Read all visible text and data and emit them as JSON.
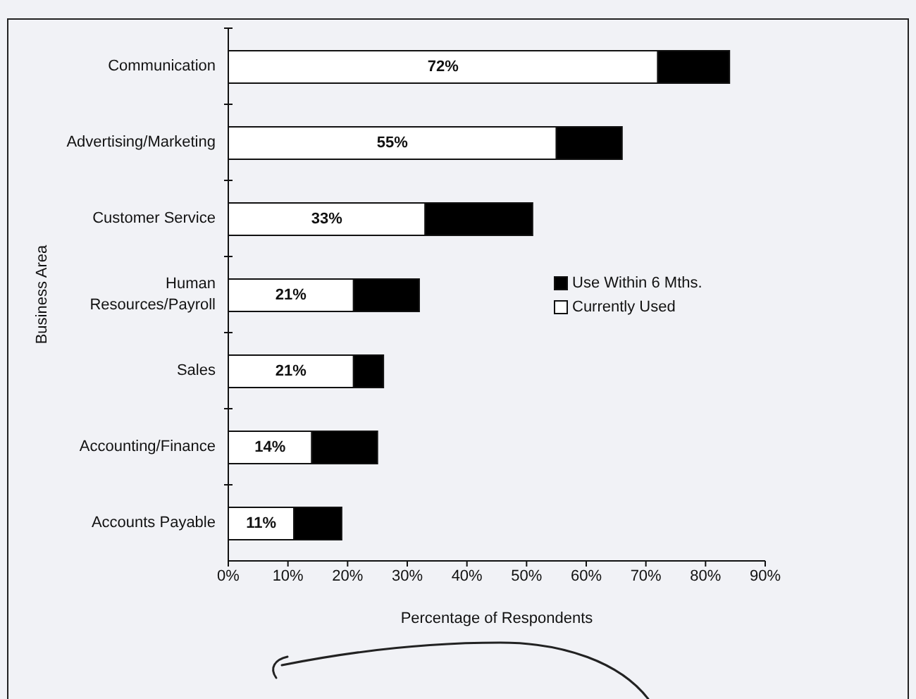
{
  "chart_data": {
    "type": "bar",
    "orientation": "horizontal",
    "stacked": true,
    "xlabel": "Percentage of Respondents",
    "ylabel": "Business Area",
    "categories": [
      "Communication",
      "Advertising/Marketing",
      "Customer Service",
      "Human Resources/Payroll",
      "Sales",
      "Accounting/Finance",
      "Accounts Payable"
    ],
    "series": [
      {
        "name": "Currently Used",
        "color": "#ffffff",
        "values": [
          72,
          55,
          33,
          21,
          21,
          14,
          11
        ],
        "value_labels": [
          "72%",
          "55%",
          "33%",
          "21%",
          "21%",
          "14%",
          "11%"
        ]
      },
      {
        "name": "Use Within 6 Mths.",
        "color": "#000000",
        "values": [
          12,
          11,
          18,
          11,
          5,
          11,
          8
        ]
      }
    ],
    "xlim": [
      0,
      90
    ],
    "xticks": [
      {
        "value": 0,
        "label": "0%"
      },
      {
        "value": 10,
        "label": "10%"
      },
      {
        "value": 20,
        "label": "20%"
      },
      {
        "value": 30,
        "label": "30%"
      },
      {
        "value": 40,
        "label": "40%"
      },
      {
        "value": 50,
        "label": "50%"
      },
      {
        "value": 60,
        "label": "60%"
      },
      {
        "value": 70,
        "label": "70%"
      },
      {
        "value": 80,
        "label": "80%"
      },
      {
        "value": 90,
        "label": "90%"
      }
    ],
    "legend": "right"
  }
}
